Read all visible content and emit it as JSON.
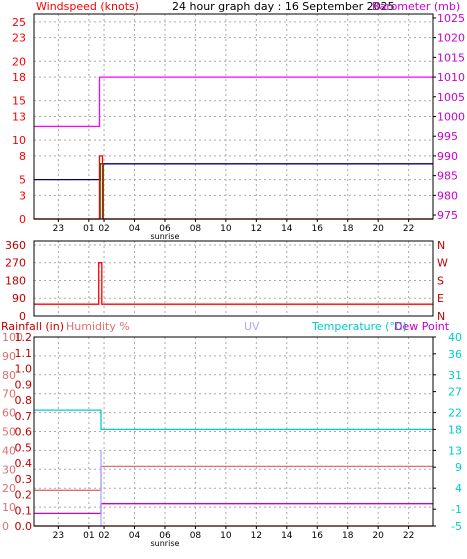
{
  "colors": {
    "red": "#ff0000",
    "darkred": "#c00000",
    "magenta": "#ff00ff",
    "purple": "#cc00cc",
    "navy": "#000080",
    "green": "#008000",
    "cyan": "#00cccc",
    "lightblue": "#aaaaff",
    "pinkish": "#e07070",
    "grid": "#aaaaaa",
    "axis": "#000000"
  },
  "chart_data": [
    {
      "type": "line",
      "id": "wind-baro",
      "title": "24 hour graph day : 16 September 2025",
      "left_axis_label": "Windspeed (knots)",
      "right_axis_label": "Barometer (mb)",
      "left_ticks": [
        0,
        3,
        5,
        8,
        10,
        13,
        15,
        18,
        20,
        23,
        25
      ],
      "left_ylim": [
        0,
        26
      ],
      "right_ticks": [
        975,
        980,
        985,
        990,
        995,
        1000,
        1005,
        1010,
        1015,
        1020,
        1025
      ],
      "right_ylim": [
        974,
        1026
      ],
      "x_ticks": [
        "23",
        "01",
        "02",
        "04",
        "06",
        "08",
        "10",
        "12",
        "14",
        "16",
        "18",
        "20",
        "22"
      ],
      "x_tick_hours": [
        -1,
        1,
        2,
        4,
        6,
        8,
        10,
        12,
        14,
        16,
        18,
        20,
        22
      ],
      "xlim": [
        -2.6,
        23.6
      ],
      "sunrise_label": "sunrise",
      "sunrise_hour": 6,
      "grid": true,
      "series": [
        {
          "color": "magenta",
          "axis": "right",
          "x": [
            -2.6,
            1.7,
            1.7,
            23.6
          ],
          "y": [
            997.5,
            997.5,
            1010,
            1010
          ]
        },
        {
          "color": "navy",
          "axis": "left",
          "x": [
            -2.6,
            1.75,
            1.75,
            23.6
          ],
          "y": [
            5,
            5,
            7,
            7
          ]
        },
        {
          "color": "green",
          "axis": "left",
          "x": [
            -2.6,
            1.75,
            1.75,
            1.95,
            1.95,
            23.6
          ],
          "y": [
            0,
            0,
            7,
            7,
            0,
            0
          ]
        },
        {
          "color": "red",
          "axis": "left",
          "x": [
            -2.6,
            1.7,
            1.7,
            1.9,
            1.9,
            23.6
          ],
          "y": [
            0,
            0,
            8,
            8,
            0,
            0
          ]
        }
      ]
    },
    {
      "type": "line",
      "id": "wind-dir",
      "left_ticks": [
        0,
        90,
        180,
        270,
        360
      ],
      "right_ticks": [
        "N",
        "E",
        "S",
        "W",
        "N"
      ],
      "ylim": [
        0,
        380
      ],
      "xlim": [
        -2.6,
        23.6
      ],
      "grid": true,
      "series": [
        {
          "color": "red",
          "x": [
            -2.6,
            1.65,
            1.65,
            1.85,
            1.85,
            23.6
          ],
          "y": [
            60,
            60,
            270,
            270,
            60,
            60
          ]
        }
      ]
    },
    {
      "type": "line",
      "id": "temp-rain",
      "rainfall_label": "Rainfall (in)",
      "humidity_label": "Humidity %",
      "uv_label": "UV",
      "temperature_label": "Temperature (°C)",
      "dewpoint_label": "Dew Point",
      "humidity_ticks": [
        0,
        10,
        20,
        30,
        40,
        50,
        60,
        70,
        80,
        90,
        100
      ],
      "rainfall_ticks": [
        "0.0",
        "0.1",
        "0.2",
        "0.3",
        "0.4",
        "0.5",
        "0.6",
        "0.7",
        "0.8",
        "0.9",
        "1.0",
        "1.1",
        "1.2"
      ],
      "rainfall_ylim": [
        0,
        1.2
      ],
      "temp_ticks": [
        -5,
        -1,
        4,
        9,
        13,
        18,
        22,
        27,
        31,
        36,
        40
      ],
      "temp_ylim": [
        -5,
        40
      ],
      "xlim": [
        -2.6,
        23.6
      ],
      "x_ticks": [
        "23",
        "01",
        "02",
        "04",
        "06",
        "08",
        "10",
        "12",
        "14",
        "16",
        "18",
        "20",
        "22"
      ],
      "x_tick_hours": [
        -1,
        1,
        2,
        4,
        6,
        8,
        10,
        12,
        14,
        16,
        18,
        20,
        22
      ],
      "sunrise_label": "sunrise",
      "sunrise_hour": 6,
      "grid": true,
      "series": [
        {
          "color": "cyan",
          "name": "Temperature",
          "axis": "temp",
          "x": [
            -2.6,
            1.8,
            1.8,
            23.6
          ],
          "y": [
            22.6,
            22.6,
            18,
            18
          ]
        },
        {
          "color": "pinkish",
          "name": "Humidity",
          "axis": "temp",
          "x": [
            -2.6,
            1.8,
            1.8,
            23.6
          ],
          "y": [
            3.5,
            3.5,
            9.2,
            9.2
          ]
        },
        {
          "color": "purple",
          "name": "Dew Point",
          "axis": "temp",
          "x": [
            -2.6,
            1.8,
            1.8,
            23.6
          ],
          "y": [
            -2,
            -2,
            0.3,
            0.3
          ]
        },
        {
          "color": "lightblue",
          "name": "UV",
          "axis": "temp",
          "x": [
            1.8,
            1.8
          ],
          "y": [
            -5,
            13
          ]
        },
        {
          "color": "darkred",
          "name": "Rainfall",
          "axis": "rain",
          "x": [
            -2.6,
            23.6
          ],
          "y": [
            0.0,
            0.0
          ]
        }
      ]
    }
  ]
}
